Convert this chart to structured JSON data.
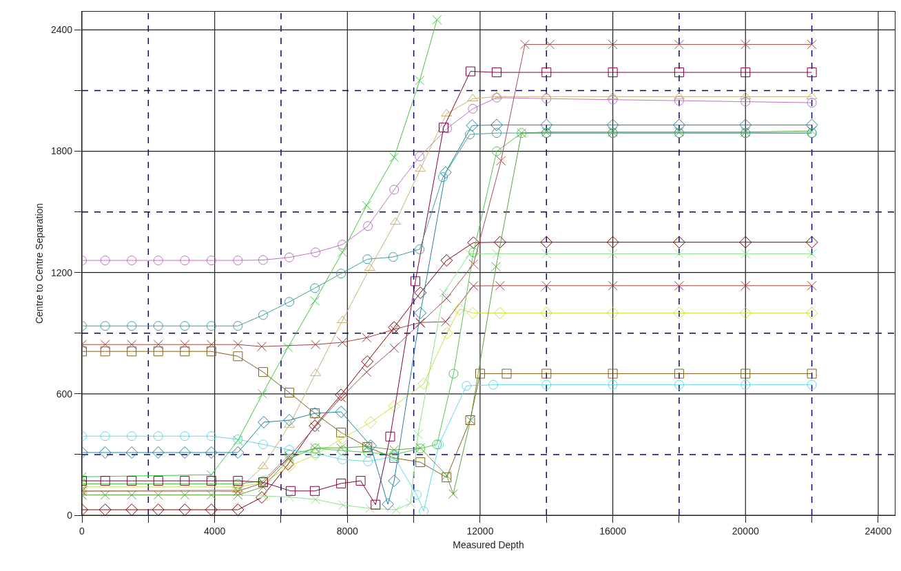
{
  "chart_data": {
    "type": "line",
    "xlabel": "Measured Depth",
    "ylabel": "Centre to Centre Separation",
    "xlim": [
      0,
      24500
    ],
    "ylim": [
      0,
      2490
    ],
    "xticks": [
      0,
      {
        "value": 2000,
        "label": null
      },
      4000,
      {
        "value": 6000,
        "label": null
      },
      8000,
      {
        "value": 10000,
        "label": null
      },
      12000,
      {
        "value": 14000,
        "label": null
      },
      16000,
      {
        "value": 18000,
        "label": null
      },
      20000,
      {
        "value": 22000,
        "label": null
      },
      24000
    ],
    "yticks": [
      0,
      {
        "value": 300,
        "label": null
      },
      600,
      {
        "value": 900,
        "label": null
      },
      1200,
      {
        "value": 1500,
        "label": null
      },
      1800,
      {
        "value": 2100,
        "label": null
      },
      2400
    ],
    "grid": true,
    "line_style": "solid",
    "series": [
      {
        "color": "#c070c0",
        "marker": "circle",
        "x": [
          0,
          700,
          1500,
          2300,
          3100,
          3900,
          4700,
          5460,
          6250,
          7040,
          7850,
          8620,
          9410,
          10180,
          11010,
          11780,
          12500,
          14000,
          16000,
          18000,
          20000,
          22000
        ],
        "values": [
          1260,
          1260,
          1260,
          1260,
          1260,
          1260,
          1260,
          1262,
          1275,
          1300,
          1338,
          1430,
          1610,
          1774,
          1913,
          2010,
          2065,
          2060,
          2055,
          2050,
          2045,
          2040
        ]
      },
      {
        "color": "#c8b070",
        "marker": "triangle",
        "x": [
          0,
          4700,
          5460,
          6250,
          7040,
          7850,
          8680,
          9450,
          10200,
          10990,
          11780,
          12500,
          14000,
          16000,
          18000,
          20000,
          22000
        ],
        "values": [
          120,
          125,
          242,
          446,
          701,
          963,
          1222,
          1450,
          1712,
          1985,
          2060,
          2070,
          2070,
          2070,
          2070,
          2070,
          2070
        ]
      },
      {
        "color": "#40c840",
        "marker": "cross",
        "x": [
          0,
          3900,
          4700,
          5440,
          6210,
          7020,
          7850,
          8580,
          9410,
          10180,
          10700
        ],
        "values": [
          190,
          200,
          370,
          600,
          830,
          1060,
          1300,
          1532,
          1770,
          2150,
          2450
        ]
      },
      {
        "color": "#800000",
        "marker": "diamond",
        "x": [
          0,
          700,
          1500,
          2300,
          3100,
          3900,
          4700,
          5420,
          6210,
          7020,
          7810,
          8600,
          9410,
          10200,
          10990,
          11800,
          12600,
          14000,
          16000,
          18000,
          20000,
          22000
        ],
        "values": [
          27,
          27,
          27,
          27,
          27,
          27,
          27,
          88,
          252,
          442,
          595,
          760,
          929,
          1100,
          1260,
          1348,
          1350,
          1350,
          1350,
          1350,
          1350,
          1350
        ]
      },
      {
        "color": "#a04040",
        "marker": "cross",
        "x": [
          0,
          700,
          1500,
          2300,
          3100,
          3900,
          4700,
          5420,
          7040,
          7850,
          8580,
          9410,
          10200,
          10960,
          11800,
          12600,
          14000,
          16000,
          18000,
          20000,
          22000
        ],
        "values": [
          844,
          844,
          844,
          844,
          844,
          844,
          844,
          834,
          844,
          855,
          878,
          919,
          953,
          957,
          1134,
          1135,
          1135,
          1135,
          1135,
          1135,
          1135
        ]
      },
      {
        "color": "#806020",
        "marker": "square",
        "x": [
          0,
          700,
          1500,
          2300,
          3100,
          3900,
          4700,
          5460,
          6250,
          7020,
          7810,
          8600,
          9410,
          10200,
          10990,
          11700,
          12000,
          12800,
          14000,
          16000,
          18000,
          20000,
          22000
        ],
        "values": [
          810,
          810,
          810,
          810,
          810,
          810,
          786,
          708,
          606,
          504,
          409,
          337,
          283,
          262,
          187,
          470,
          700,
          700,
          700,
          700,
          700,
          700,
          700
        ]
      },
      {
        "color": "#60d8e8",
        "marker": "circle",
        "x": [
          0,
          700,
          1500,
          2300,
          3100,
          3900,
          4700,
          5460,
          6250,
          7040,
          7850,
          8620,
          9400,
          10090,
          10300,
          10760,
          11590,
          12400,
          14000,
          16000,
          18000,
          20000,
          22000
        ],
        "values": [
          391,
          391,
          391,
          391,
          391,
          391,
          375,
          350,
          323,
          306,
          276,
          266,
          290,
          101,
          20,
          350,
          640,
          645,
          645,
          645,
          645,
          645,
          645
        ]
      },
      {
        "color": "#90e090",
        "marker": "cross",
        "x": [
          0,
          4700,
          5460,
          6250,
          7040,
          7870,
          8680,
          9470,
          9900,
          10130,
          10900,
          11690,
          12500,
          14000,
          16000,
          18000,
          20000,
          22000
        ],
        "values": [
          100,
          100,
          95,
          90,
          78,
          50,
          34,
          27,
          60,
          400,
          1100,
          1293,
          1293,
          1293,
          1293,
          1293,
          1293,
          1293
        ]
      },
      {
        "color": "#c8e040",
        "marker": "diamond",
        "x": [
          0,
          4700,
          5460,
          6250,
          7040,
          7850,
          8700,
          9410,
          10300,
          11000,
          11380,
          11780,
          12600,
          14000,
          16000,
          18000,
          20000,
          22000
        ],
        "values": [
          140,
          140,
          160,
          242,
          300,
          380,
          459,
          540,
          650,
          900,
          1020,
          1000,
          1000,
          1000,
          1000,
          1000,
          1000,
          1000
        ]
      },
      {
        "color": "#60a040",
        "marker": "cross",
        "x": [
          0,
          700,
          1500,
          2300,
          3100,
          3900,
          4700,
          5460,
          6250,
          7020,
          7810,
          8600,
          9410,
          10200,
          10990,
          11190,
          11710,
          12480,
          13250,
          14000,
          16000,
          18000,
          20000,
          22000
        ],
        "values": [
          100,
          100,
          100,
          100,
          100,
          100,
          100,
          140,
          280,
          333,
          333,
          340,
          323,
          333,
          197,
          105,
          470,
          1229,
          1890,
          1895,
          1895,
          1895,
          1895,
          1900
        ]
      },
      {
        "color": "#50c850",
        "marker": "circle",
        "x": [
          0,
          4700,
          5460,
          6250,
          7040,
          7850,
          8620,
          9410,
          10200,
          10700,
          11200,
          11800,
          12500,
          13250,
          14000,
          16000,
          18000,
          20000,
          22000
        ],
        "values": [
          155,
          155,
          170,
          300,
          330,
          320,
          310,
          300,
          330,
          350,
          700,
          1300,
          1800,
          1890,
          1890,
          1890,
          1890,
          1890,
          1890
        ]
      },
      {
        "color": "#800040",
        "marker": "square",
        "x": [
          0,
          700,
          1500,
          2300,
          3100,
          3900,
          4700,
          5460,
          6290,
          7020,
          7810,
          8400,
          8850,
          9290,
          10050,
          10900,
          11710,
          12500,
          14000,
          16000,
          18000,
          20000,
          22000
        ],
        "values": [
          170,
          170,
          170,
          170,
          170,
          170,
          170,
          163,
          120,
          120,
          157,
          170,
          52,
          389,
          1157,
          1917,
          2195,
          2190,
          2190,
          2190,
          2190,
          2190,
          2190
        ]
      },
      {
        "color": "#a05050",
        "marker": "cross",
        "x": [
          0,
          4700,
          5460,
          6250,
          7020,
          7810,
          8580,
          9410,
          10200,
          10990,
          11800,
          12630,
          13350,
          14100,
          16000,
          18000,
          20000,
          22000
        ],
        "values": [
          119,
          119,
          160,
          290,
          436,
          582,
          708,
          827,
          950,
          1072,
          1242,
          1753,
          2328,
          2328,
          2328,
          2328,
          2328,
          2328
        ]
      },
      {
        "color": "#2080a0",
        "marker": "diamond",
        "x": [
          0,
          700,
          1500,
          2300,
          3100,
          3900,
          4700,
          5480,
          6250,
          7020,
          7810,
          8700,
          9220,
          9410,
          10200,
          10960,
          11760,
          12500,
          14000,
          16000,
          18000,
          20000,
          22000
        ],
        "values": [
          310,
          310,
          310,
          310,
          310,
          310,
          310,
          460,
          470,
          504,
          511,
          344,
          54,
          170,
          1000,
          1695,
          1927,
          1930,
          1930,
          1930,
          1930,
          1930,
          1930
        ]
      },
      {
        "color": "#40a0a0",
        "marker": "circle",
        "x": [
          0,
          700,
          1500,
          2300,
          3100,
          3900,
          4700,
          5460,
          6250,
          7020,
          7810,
          8600,
          9380,
          10180,
          10880,
          11690,
          12500,
          14000,
          16000,
          18000,
          20000,
          22000
        ],
        "values": [
          936,
          936,
          936,
          936,
          936,
          936,
          936,
          990,
          1055,
          1123,
          1195,
          1266,
          1277,
          1315,
          1672,
          1883,
          1890,
          1890,
          1890,
          1890,
          1890,
          1890
        ]
      }
    ]
  }
}
